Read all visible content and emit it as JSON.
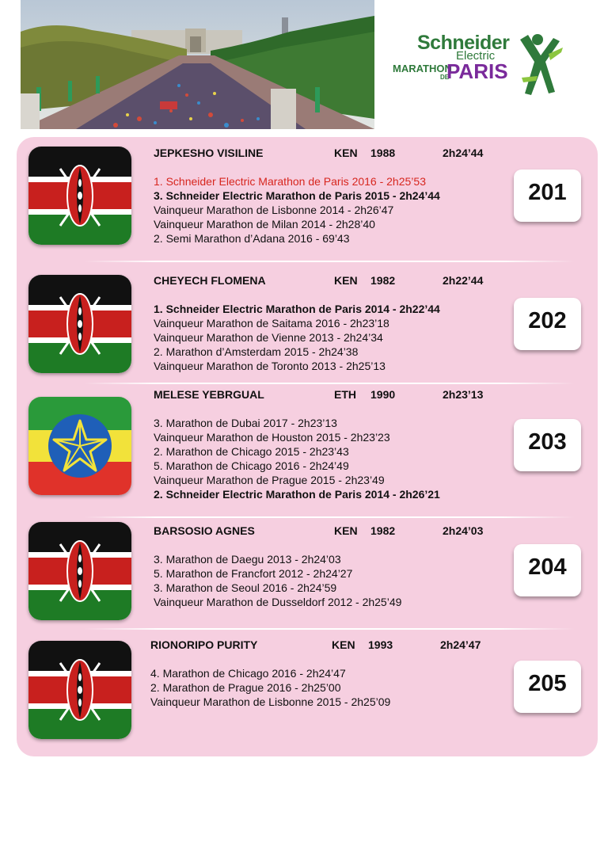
{
  "header": {
    "hero_image": "champs-elysees-marathon-crowd-photo",
    "logo": {
      "line1": "Schneider",
      "line2": "Electric",
      "line3": "MARATHON",
      "line4": "DE",
      "line5": "PARIS",
      "icon": "runner-icon",
      "colors": {
        "green": "#2f7a3b",
        "purple": "#7a2a9b",
        "lime": "#8cc63f"
      }
    }
  },
  "colors": {
    "panel": "#f6cfe0",
    "highlight_red": "#d7261e"
  },
  "athletes": [
    {
      "name": "JEPKESHO  VISILINE",
      "country": "KEN",
      "year": "1988",
      "time": "2h24’44",
      "flag": "kenya-flag",
      "bib": "201",
      "results": [
        {
          "text": "1. Schneider Electric Marathon de Paris 2016 - 2h25’53",
          "style": "r"
        },
        {
          "text": "3. Schneider Electric Marathon de Paris 2015 - 2h24’44",
          "style": "b"
        },
        {
          "text": "Vainqueur Marathon de Lisbonne 2014 - 2h26’47",
          "style": ""
        },
        {
          "text": "Vainqueur Marathon de Milan 2014 - 2h28’40",
          "style": ""
        },
        {
          "text": "2. Semi Marathon d’Adana 2016 - 69’43",
          "style": ""
        }
      ]
    },
    {
      "name": "CHEYECH   FLOMENA",
      "country": "KEN",
      "year": "1982",
      "time": "2h22’44",
      "flag": "kenya-flag",
      "bib": "202",
      "results": [
        {
          "text": "1. Schneider Electric Marathon de Paris  2014 - 2h22’44",
          "style": "b"
        },
        {
          "text": "Vainqueur Marathon de Saitama 2016 - 2h23’18",
          "style": ""
        },
        {
          "text": "Vainqueur Marathon de Vienne 2013 - 2h24’34",
          "style": ""
        },
        {
          "text": "2. Marathon d’Amsterdam 2015 - 2h24’38",
          "style": ""
        },
        {
          "text": "Vainqueur Marathon de Toronto 2013 - 2h25’13",
          "style": ""
        }
      ]
    },
    {
      "name": "MELESE   YEBRGUAL",
      "country": "ETH",
      "year": "1990",
      "time": "2h23’13",
      "flag": "ethiopia-flag",
      "bib": "203",
      "results": [
        {
          "text": "3. Marathon de Dubai 2017 - 2h23’13",
          "style": ""
        },
        {
          "text": "Vainqueur Marathon de Houston 2015 - 2h23’23",
          "style": ""
        },
        {
          "text": "2. Marathon de Chicago 2015 - 2h23’43",
          "style": ""
        },
        {
          "text": "5. Marathon de Chicago 2016 - 2h24’49",
          "style": ""
        },
        {
          "text": "Vainqueur Marathon de Prague 2015 - 2h23’49",
          "style": ""
        },
        {
          "text": "2. Schneider Electric Marathon de Paris 2014 - 2h26’21",
          "style": "b"
        }
      ]
    },
    {
      "name": "BARSOSIO  AGNES",
      "country": "KEN",
      "year": "1982",
      "time": "2h24’03",
      "flag": "kenya-flag",
      "bib": "204",
      "results": [
        {
          "text": "3. Marathon de Daegu 2013 - 2h24’03",
          "style": ""
        },
        {
          "text": "5. Marathon de Francfort 2012 - 2h24’27",
          "style": ""
        },
        {
          "text": "3. Marathon de Seoul 2016 - 2h24’59",
          "style": ""
        },
        {
          "text": "Vainqueur Marathon de Dusseldorf 2012 - 2h25’49",
          "style": ""
        }
      ]
    },
    {
      "name": "RIONORIPO PURITY",
      "country": "KEN",
      "year": "1993",
      "time": "2h24’47",
      "flag": "kenya-flag",
      "bib": "205",
      "results": [
        {
          "text": "4. Marathon de Chicago 2016 - 2h24’47",
          "style": ""
        },
        {
          "text": "2. Marathon de Prague 2016 - 2h25’00",
          "style": ""
        },
        {
          "text": "Vainqueur Marathon de Lisbonne 2015 - 2h25’09",
          "style": ""
        }
      ]
    }
  ]
}
